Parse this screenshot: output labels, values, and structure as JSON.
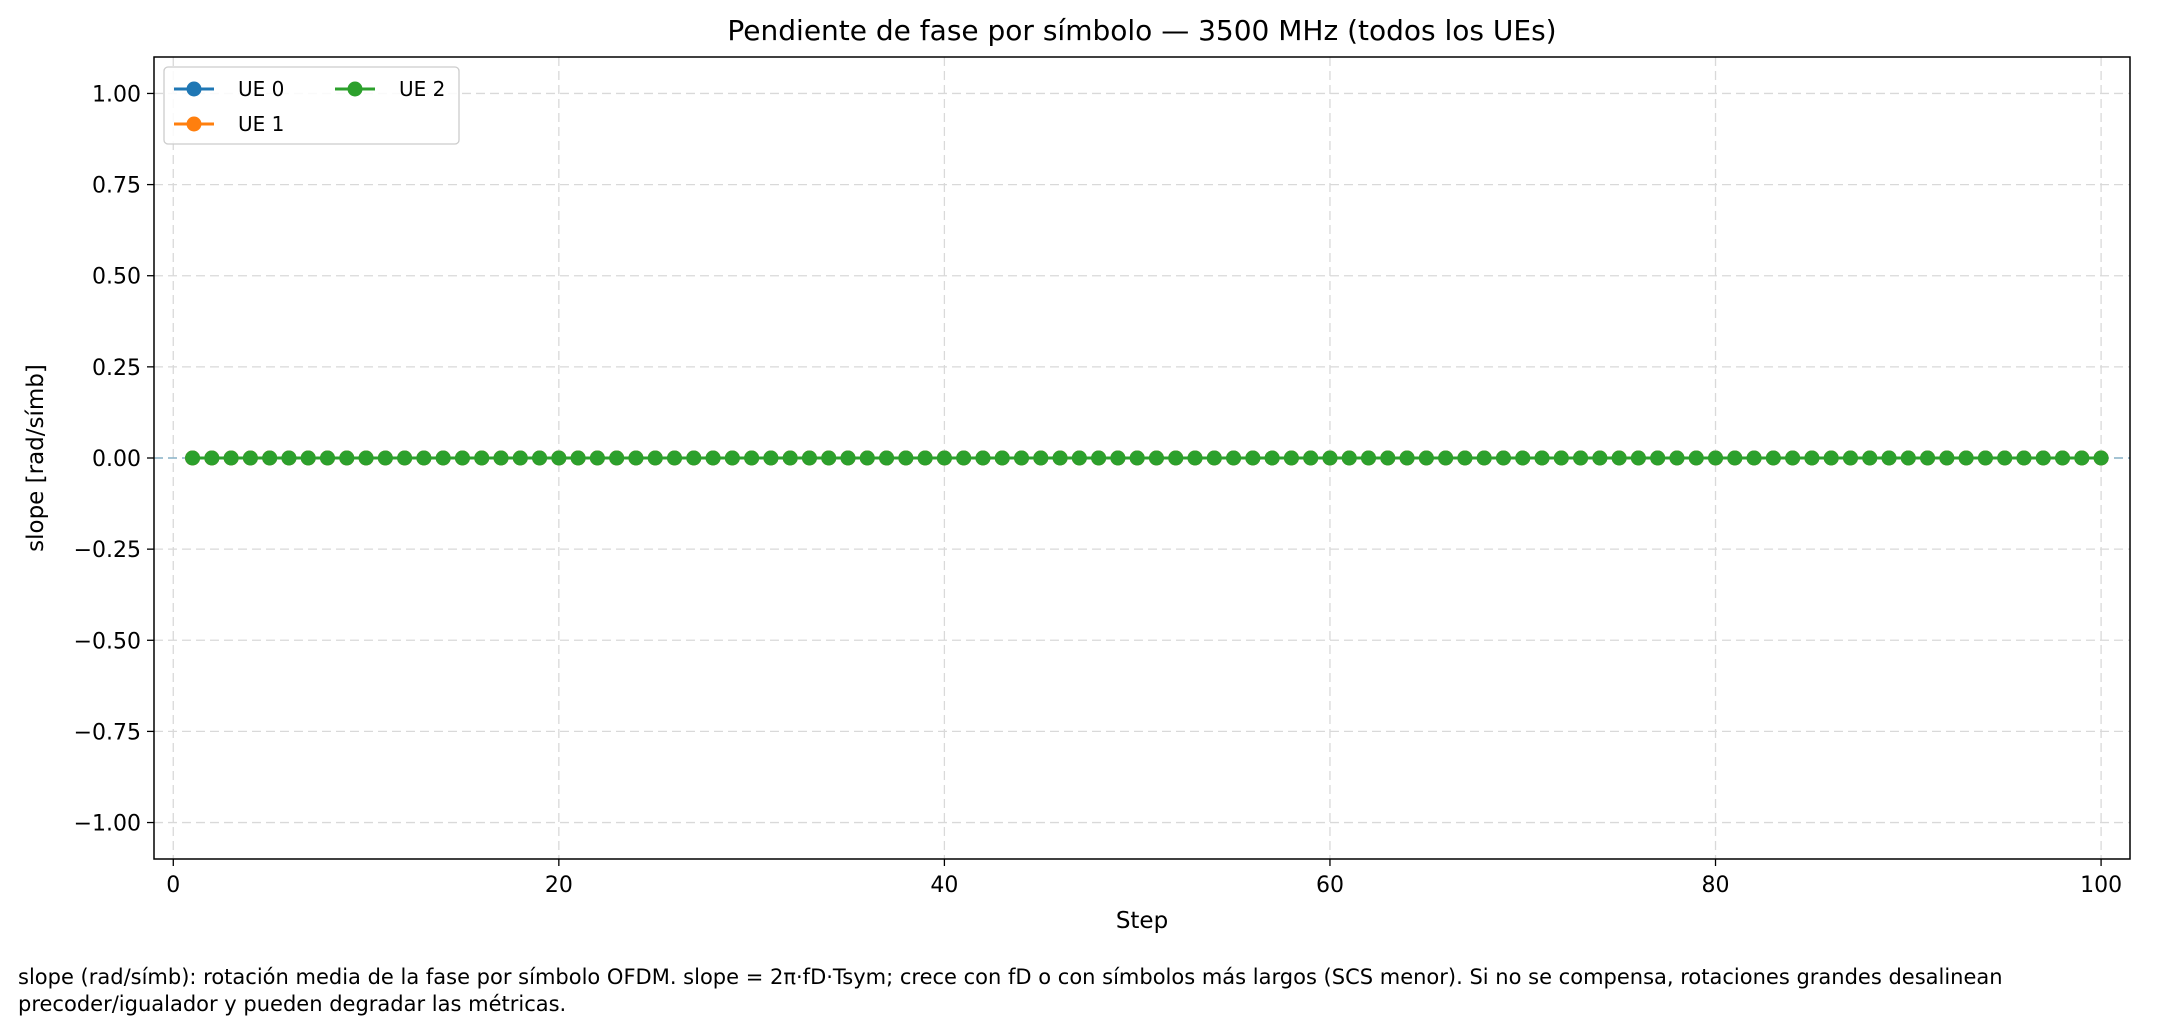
{
  "chart_data": {
    "type": "line",
    "title": "Pendiente de fase por símbolo — 3500 MHz (todos los UEs)",
    "xlabel": "Step",
    "ylabel": "slope [rad/símb]",
    "xlim": [
      -1,
      101.5
    ],
    "ylim": [
      -1.1,
      1.1
    ],
    "xticks": [
      0,
      20,
      40,
      60,
      80,
      100
    ],
    "xtick_labels": [
      "0",
      "20",
      "40",
      "60",
      "80",
      "100"
    ],
    "yticks": [
      1.0,
      0.75,
      0.5,
      0.25,
      0.0,
      -0.25,
      -0.5,
      -0.75,
      -1.0
    ],
    "ytick_labels": [
      "1.00",
      "0.75",
      "0.50",
      "0.25",
      "0.00",
      "−0.25",
      "−0.50",
      "−0.75",
      "−1.00"
    ],
    "grid": true,
    "legend_position": "top-left",
    "legend_columns": 2,
    "reference_line": {
      "y": 0,
      "style": "dashed",
      "color": "#8ab4c8"
    },
    "x": {
      "start": 1,
      "end": 100,
      "step": 1
    },
    "series": [
      {
        "name": "UE 0",
        "color": "#1f77b4",
        "y_constant": 0
      },
      {
        "name": "UE 1",
        "color": "#ff7f0e",
        "y_constant": 0
      },
      {
        "name": "UE 2",
        "color": "#2ca02c",
        "y_constant": 0
      }
    ]
  },
  "caption": {
    "line1": "slope (rad/símb): rotación media de la fase por símbolo OFDM. slope = 2π·fD·Tsym; crece con fD o con símbolos más largos (SCS menor). Si no se compensa, rotaciones grandes desalinean",
    "line2": "precoder/igualador y pueden degradar las métricas."
  }
}
